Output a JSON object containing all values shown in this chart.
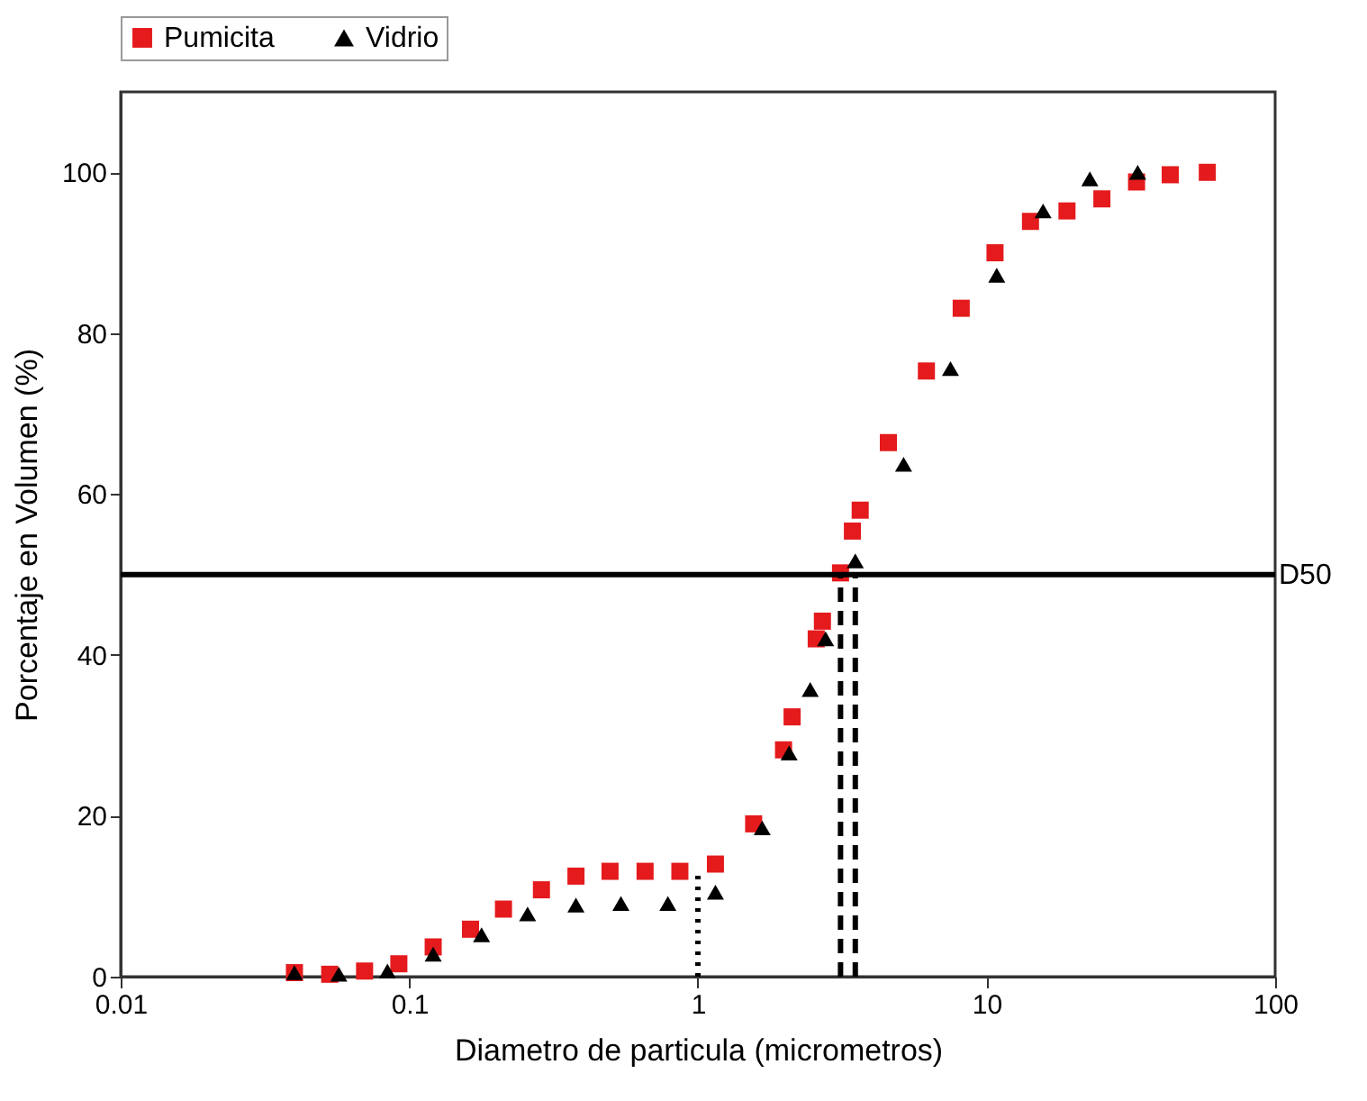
{
  "chart_data": {
    "type": "scatter",
    "xlabel": "Diametro de particula (micrometros)",
    "ylabel": "Porcentaje en Volumen (%)",
    "log": "x",
    "xlim": [
      0.01,
      100
    ],
    "xticks": [
      0.01,
      0.1,
      1,
      10,
      100
    ],
    "ylim": [
      0,
      110
    ],
    "yticks": [
      0,
      20,
      40,
      60,
      80,
      100
    ],
    "grid": false,
    "legend": "top",
    "series": [
      {
        "name": "Pumicita",
        "color": "#e41a1c",
        "marker": "square",
        "x": [
          0.04,
          0.053,
          0.07,
          0.092,
          0.121,
          0.163,
          0.212,
          0.287,
          0.378,
          0.496,
          0.656,
          0.866,
          1.15,
          1.56,
          1.98,
          2.12,
          2.57,
          2.7,
          3.12,
          3.43,
          3.65,
          4.57,
          6.19,
          8.17,
          10.7,
          14.2,
          19.0,
          25.1,
          33.1,
          43.3,
          58.2
        ],
        "values": [
          0.5,
          0.3,
          0.7,
          1.6,
          3.7,
          5.9,
          8.4,
          10.8,
          12.5,
          13.1,
          13.1,
          13.1,
          14.0,
          19.0,
          28.2,
          32.3,
          42.0,
          44.2,
          50.2,
          55.4,
          58.0,
          66.4,
          75.3,
          83.1,
          90.0,
          93.9,
          95.2,
          96.7,
          98.8,
          99.7,
          100
        ]
      },
      {
        "name": "Vidrio",
        "color": "#000000",
        "marker": "triangle",
        "x": [
          0.04,
          0.057,
          0.084,
          0.121,
          0.178,
          0.257,
          0.378,
          0.541,
          0.787,
          1.15,
          1.67,
          2.07,
          2.45,
          2.77,
          3.51,
          5.16,
          7.5,
          10.85,
          15.7,
          22.8,
          33.4
        ],
        "values": [
          0.5,
          0.3,
          0.7,
          2.8,
          5.2,
          7.8,
          8.9,
          9.1,
          9.1,
          10.5,
          18.5,
          27.8,
          35.7,
          42.0,
          51.7,
          63.7,
          75.6,
          87.2,
          95.2,
          99.2,
          100
        ]
      },
      {
        "type": "line",
        "color": "#000000",
        "line_style": "dashed",
        "x": [
          3.12,
          3.12
        ],
        "values": [
          0,
          50
        ]
      },
      {
        "type": "line",
        "color": "#000000",
        "line_style": "dashed",
        "x": [
          3.51,
          3.51
        ],
        "values": [
          0,
          50
        ]
      },
      {
        "type": "line",
        "color": "#000000",
        "line_style": "dotted",
        "x": [
          1,
          1
        ],
        "values": [
          0,
          12.6
        ]
      }
    ],
    "ref_lines": [
      {
        "axis": "y",
        "value": 50,
        "label": "D50",
        "color": "#000000"
      }
    ]
  }
}
